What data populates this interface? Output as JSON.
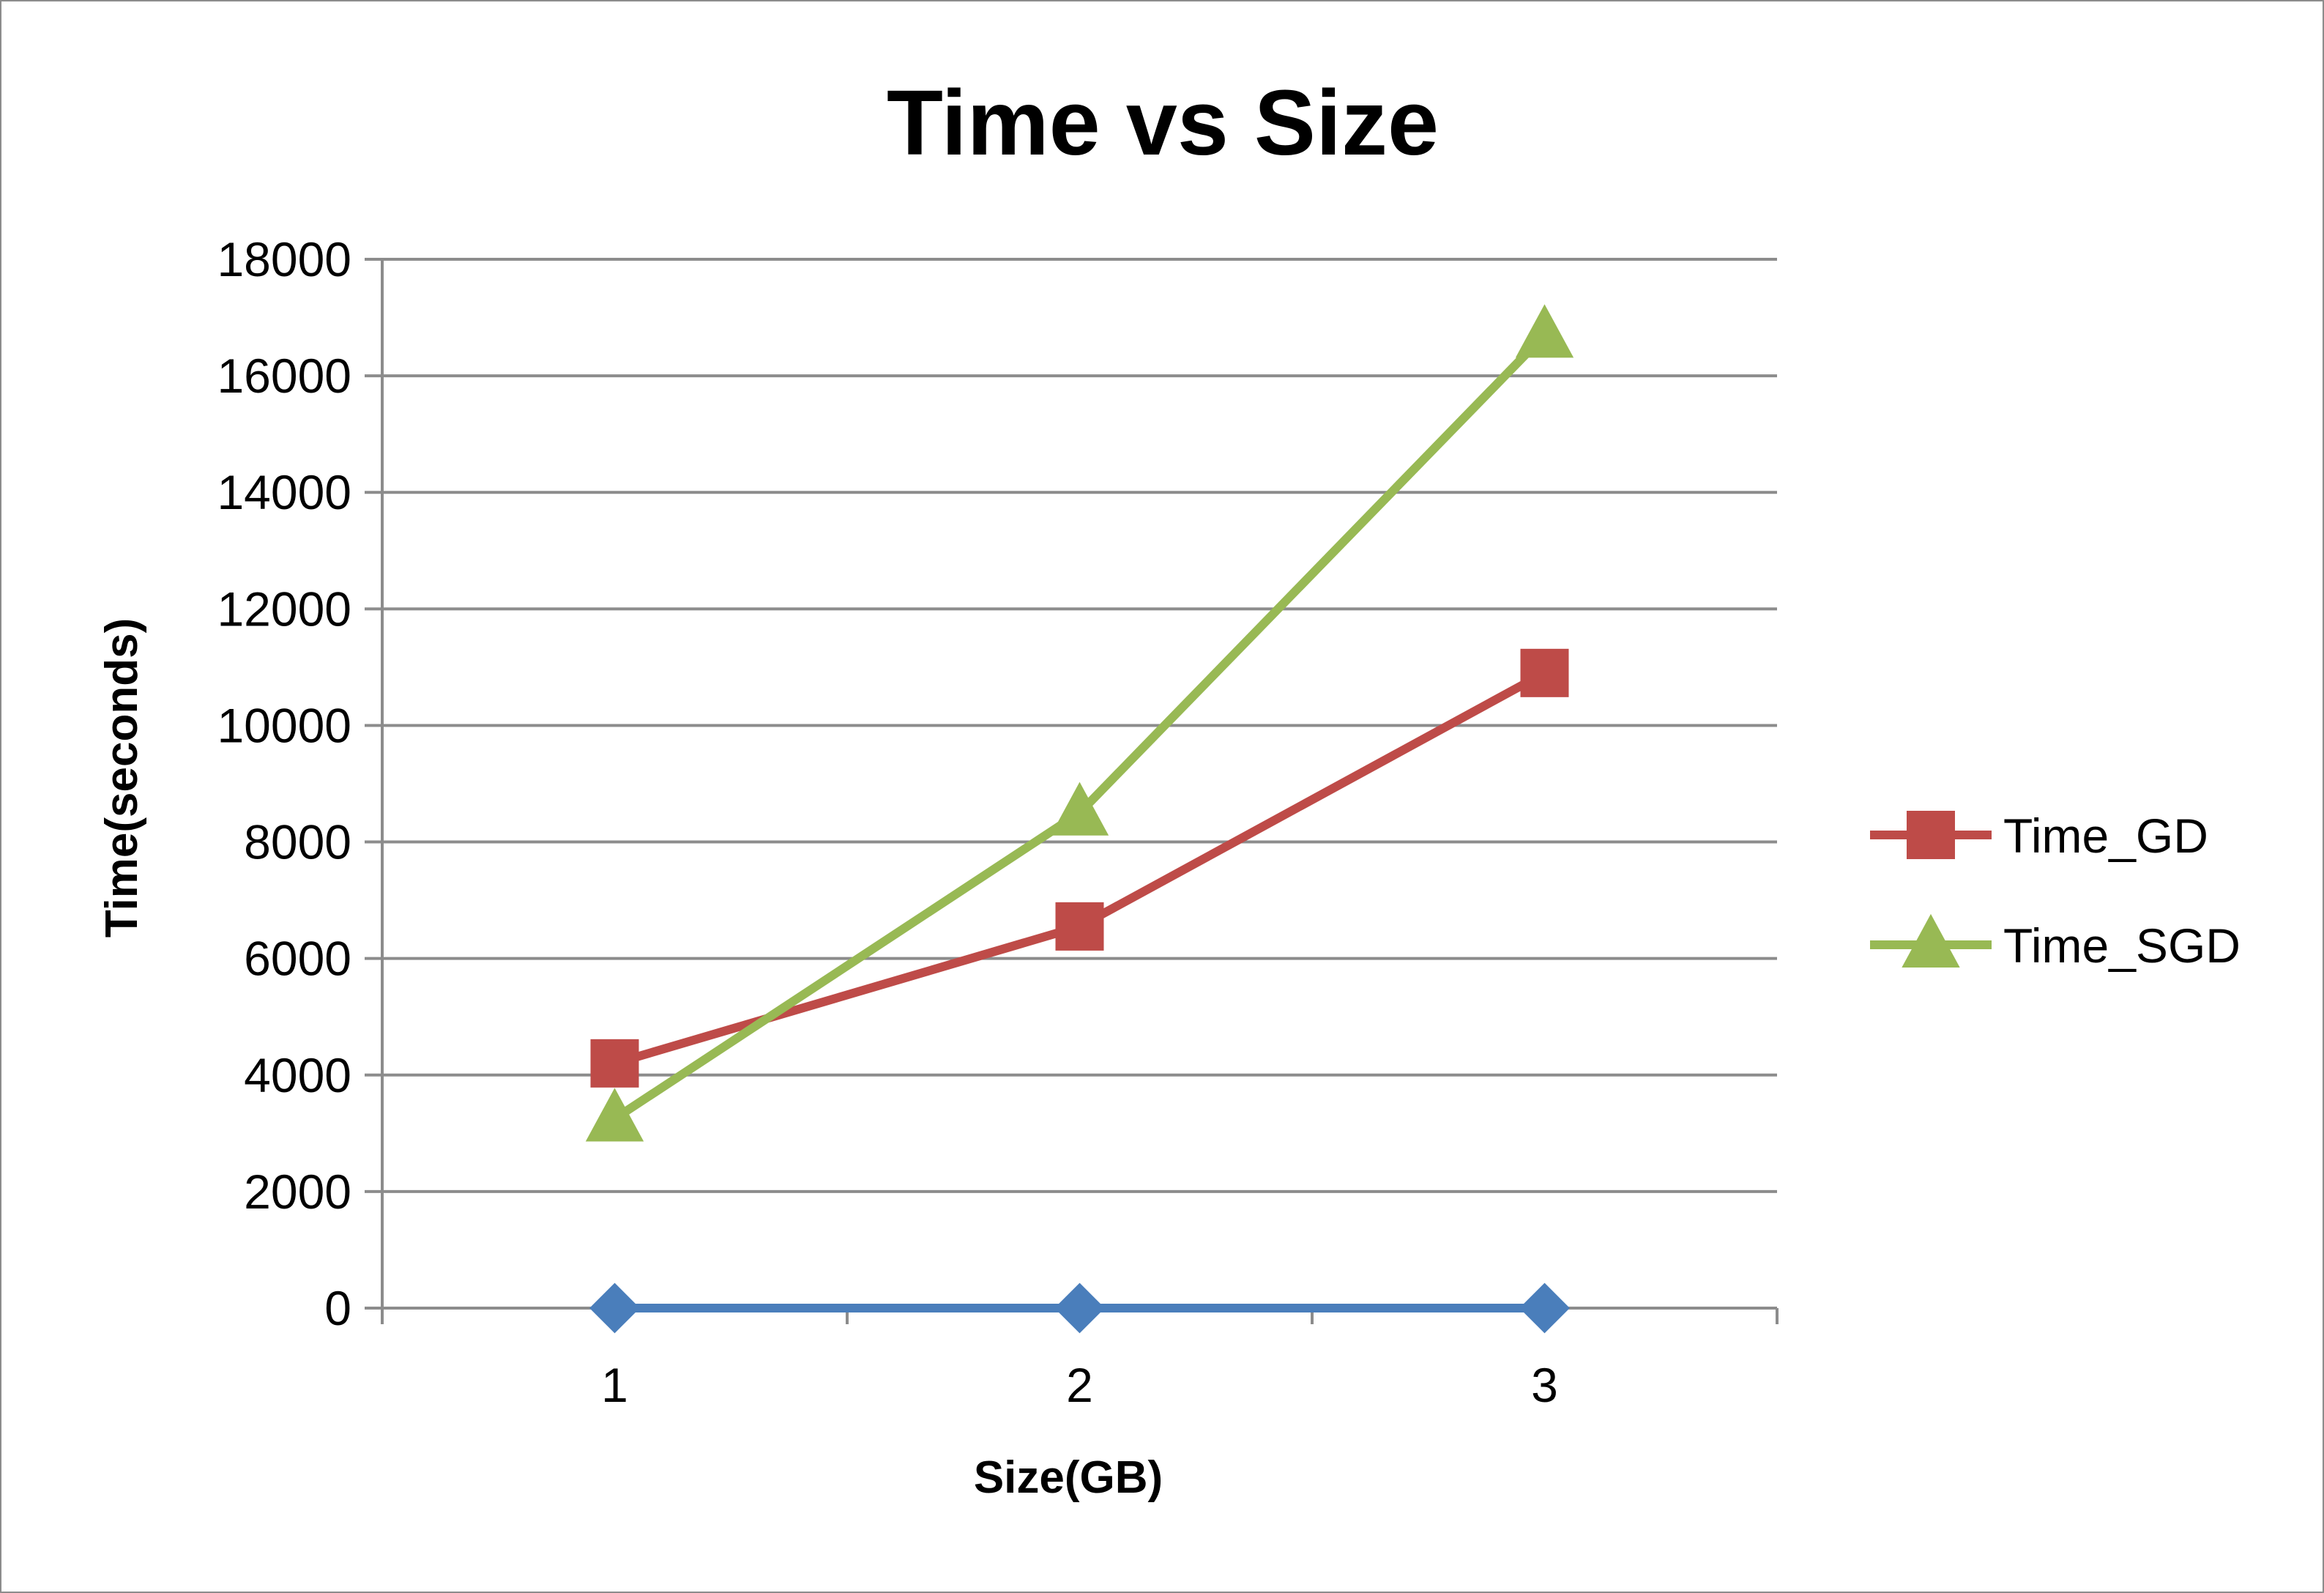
{
  "chart_data": {
    "type": "line",
    "title": "Time vs Size",
    "xlabel": "Size(GB)",
    "ylabel": "Time(seconds)",
    "categories": [
      "1",
      "2",
      "3"
    ],
    "ylim": [
      0,
      18000
    ],
    "yticks": [
      "0",
      "2000",
      "4000",
      "6000",
      "8000",
      "10000",
      "12000",
      "14000",
      "16000",
      "18000"
    ],
    "grid": true,
    "legend_position": "right",
    "series": [
      {
        "values": [
          0,
          0,
          0
        ],
        "color": "#4a7ebb",
        "marker": "diamond",
        "in_legend": false
      },
      {
        "name": "Time_GD",
        "values": [
          4200,
          6550,
          10900
        ],
        "color": "#be4b48",
        "marker": "square",
        "in_legend": true
      },
      {
        "name": "Time_SGD",
        "values": [
          3250,
          8500,
          16700
        ],
        "color": "#98b954",
        "marker": "triangle",
        "in_legend": true
      }
    ]
  }
}
